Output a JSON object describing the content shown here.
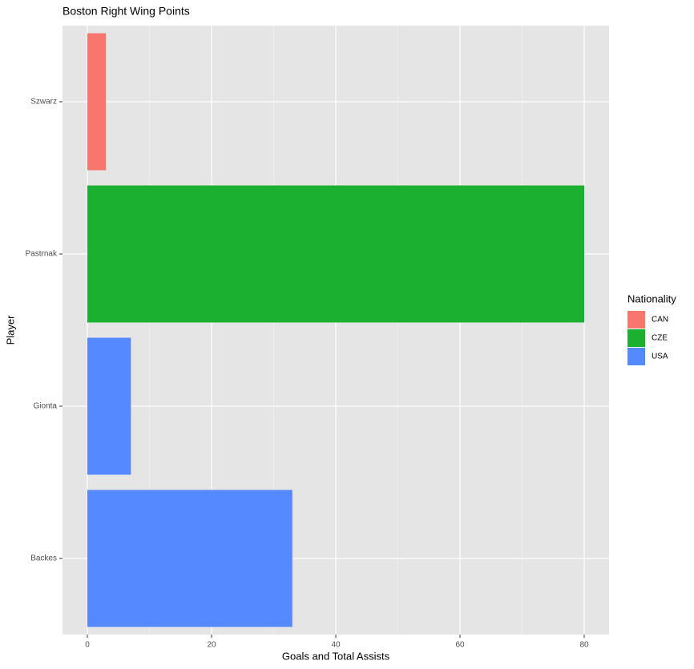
{
  "chart_data": {
    "type": "barh",
    "title": "Boston Right Wing Points",
    "x_label": "Goals and Total Assists",
    "y_label": "Player",
    "categories": [
      "Backes",
      "Gionta",
      "Pastrnak",
      "Szwarz"
    ],
    "series": [
      {
        "name": "CAN",
        "color": "#F8766D",
        "values": [
          null,
          null,
          null,
          3
        ]
      },
      {
        "name": "CZE",
        "color": "#1BB02F",
        "values": [
          null,
          null,
          80,
          null
        ]
      },
      {
        "name": "USA",
        "color": "#5589FF",
        "values": [
          33,
          7,
          null,
          null
        ]
      }
    ],
    "xlim": [
      -4,
      84
    ],
    "xticks": [
      0,
      20,
      40,
      60,
      80
    ],
    "grid": true,
    "legend_title": "Nationality",
    "legend_position": "right"
  }
}
